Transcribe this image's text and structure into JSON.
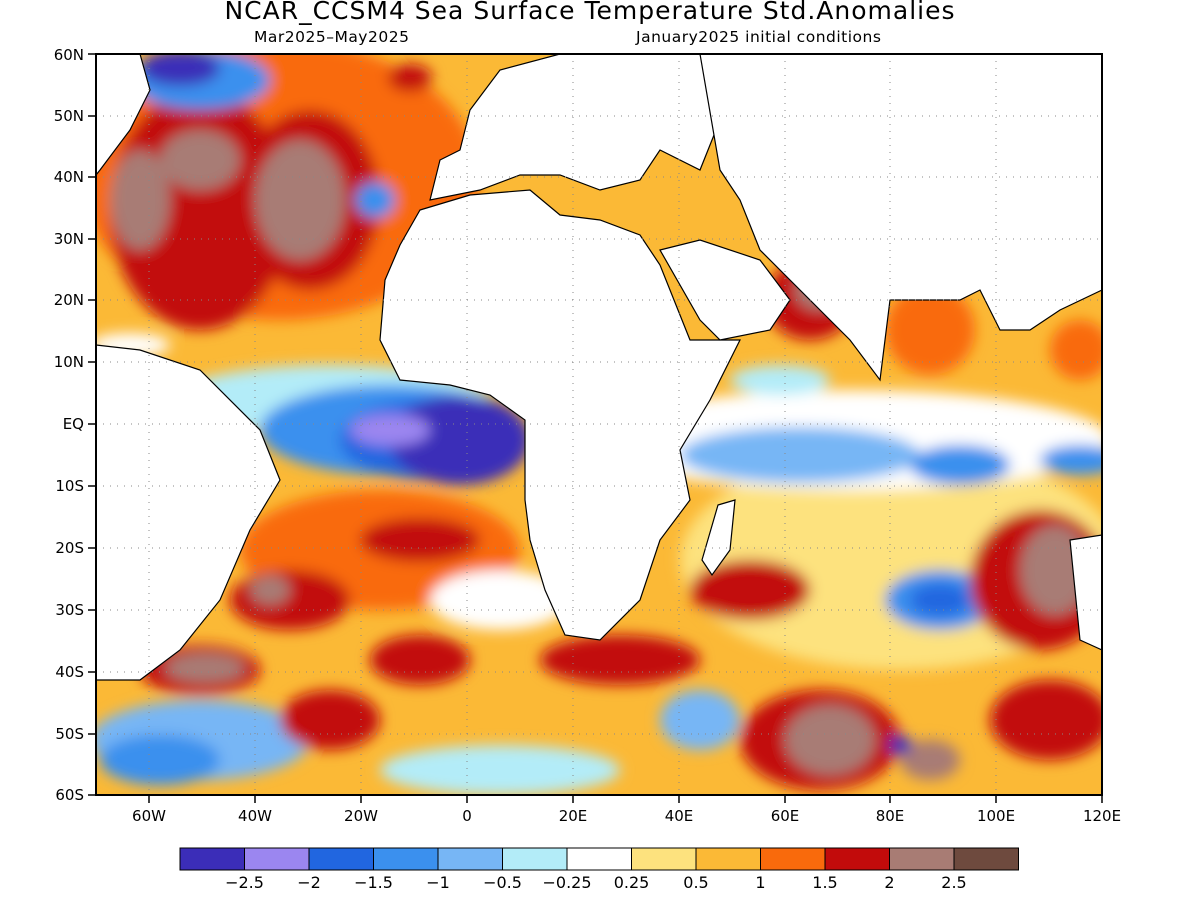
{
  "header": {
    "title": "NCAR_CCSM4 Sea Surface Temperature Std.Anomalies",
    "valid_period": "Mar2025–May2025",
    "initial_conditions": "January2025 initial conditions"
  },
  "map": {
    "lon_range": [
      -70,
      120
    ],
    "lat_range": [
      -60,
      60
    ],
    "lat_labels": [
      "60N",
      "50N",
      "40N",
      "30N",
      "20N",
      "10N",
      "EQ",
      "10S",
      "20S",
      "30S",
      "40S",
      "50S",
      "60S"
    ],
    "lon_labels": [
      "60W",
      "40W",
      "20W",
      "0",
      "20E",
      "40E",
      "60E",
      "80E",
      "100E",
      "120E"
    ],
    "lon_label_values": [
      -60,
      -40,
      -20,
      0,
      20,
      40,
      60,
      80,
      100,
      120
    ],
    "grid": "dotted",
    "land_color": "#ffffff"
  },
  "colorbar": {
    "colors": [
      "#3b2db8",
      "#9b86f0",
      "#2166e0",
      "#3b90ee",
      "#77b6f5",
      "#b3ecf8",
      "#ffffff",
      "#fde27e",
      "#fbb936",
      "#f96a0c",
      "#c20b0b",
      "#a87c74",
      "#6e4a3e"
    ],
    "labels": [
      "−2.5",
      "−2",
      "−1.5",
      "−1",
      "−0.5",
      "−0.25",
      "0.25",
      "0.5",
      "1",
      "1.5",
      "2",
      "2.5"
    ]
  }
}
